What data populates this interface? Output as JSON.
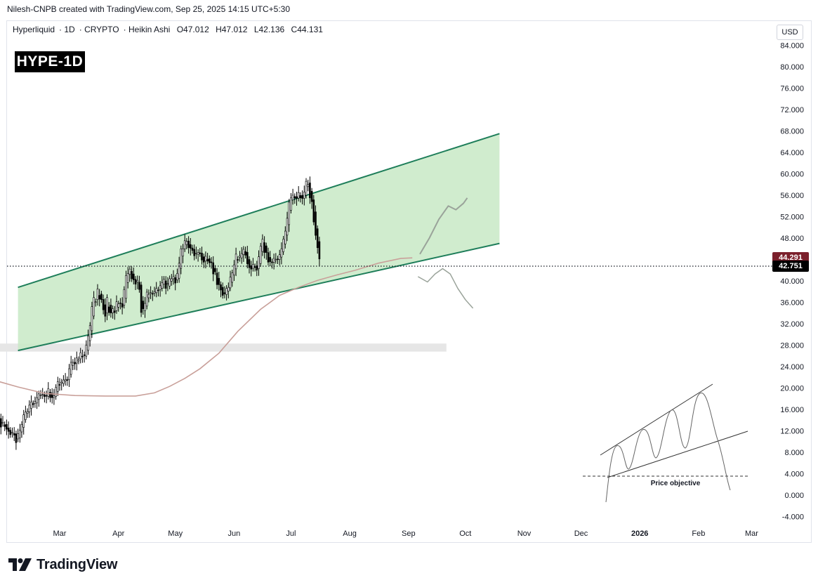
{
  "header": {
    "attribution": "Nilesh-CNPB created with TradingView.com, Sep 25, 2025 14:15 UTC+5:30"
  },
  "symbol": {
    "name": "Hyperliquid",
    "interval": "1D",
    "exchange": "CRYPTO",
    "chart_style": "Heikin Ashi",
    "open": "O47.012",
    "high": "H47.012",
    "low": "L42.136",
    "close": "C44.131",
    "badge": "HYPE-1D"
  },
  "price_scale": {
    "currency": "USD",
    "current_price_label": "42.751",
    "ma_value_label": "44.291"
  },
  "colors": {
    "candles": "#000000",
    "ma_line": "#c9a09a",
    "channel": "#1e7e5a",
    "channel_fill": "#c8e9c5",
    "ma_badge": "#7b1f2b",
    "price_badge": "#000000",
    "support_zone": "#e6e6e6",
    "projection": "#9aa39a"
  },
  "inset": {
    "label": "Price objective"
  },
  "brand": {
    "name": "TradingView"
  },
  "chart_data": {
    "type": "candlestick",
    "title": "Hyperliquid · 1D · CRYPTO · Heikin Ashi",
    "xlabel": "",
    "ylabel": "USD",
    "ylim": [
      -6,
      87
    ],
    "y_ticks": [
      "84.000",
      "80.000",
      "76.000",
      "72.000",
      "68.000",
      "64.000",
      "60.000",
      "56.000",
      "52.000",
      "48.000",
      "44.000",
      "40.000",
      "36.000",
      "32.000",
      "28.000",
      "24.000",
      "20.000",
      "16.000",
      "12.000",
      "8.000",
      "4.000",
      "0.000",
      "-4.000"
    ],
    "x_ticks": [
      "Mar",
      "Apr",
      "May",
      "Jun",
      "Jul",
      "Aug",
      "Sep",
      "Oct",
      "Nov",
      "Dec",
      "2026",
      "Feb",
      "Mar"
    ],
    "x_tick_days": [
      0,
      31,
      61,
      92,
      122,
      153,
      184,
      214,
      245,
      275,
      306,
      337,
      365
    ],
    "candle_start_day": -86,
    "candle_closes": [
      24.9,
      25.0,
      26.5,
      24.7,
      24.1,
      25.8,
      23.7,
      24.7,
      25.6,
      24.0,
      25.2,
      26.9,
      26.3,
      25.0,
      24.6,
      26.0,
      25.8,
      24.5,
      25.5,
      25.5,
      26.6,
      24.8,
      22.3,
      22.1,
      19.9,
      19.3,
      20.6,
      21.0,
      20.6,
      19.7,
      18.9,
      17.1,
      17.0,
      16.6,
      15.5,
      15.0,
      15.5,
      15.1,
      13.6,
      13.9,
      13.3,
      13.7,
      13.5,
      12.9,
      13.5,
      13.5,
      13.8,
      14.1,
      15.1,
      15.4,
      15.0,
      16.2,
      15.3,
      14.5,
      14.1,
      12.7,
      13.6,
      12.8,
      12.3,
      11.9,
      11.3,
      11.7,
      11.2,
      9.8,
      11.5,
      12.1,
      13.2,
      15.0,
      15.5,
      15.6,
      16.8,
      17.4,
      16.9,
      17.5,
      18.2,
      18.9,
      18.7,
      18.8,
      18.4,
      18.5,
      19.9,
      18.2,
      18.2,
      18.6,
      20.1,
      21.2,
      20.6,
      21.1,
      21.5,
      21.6,
      21.5,
      23.6,
      24.8,
      24.8,
      24.5,
      25.6,
      25.3,
      26.6,
      25.8,
      26.1,
      28.0,
      29.7,
      31.7,
      35.2,
      36.9,
      36.1,
      38.5,
      36.6,
      36.5,
      34.6,
      33.4,
      36.9,
      34.1,
      34.0,
      34.8,
      34.1,
      36.1,
      35.7,
      35.8,
      35.1,
      38.4,
      41.0,
      41.4,
      42.2,
      40.4,
      40.2,
      39.4,
      40.1,
      38.4,
      34.1,
      34.8,
      35.8,
      37.9,
      37.5,
      37.8,
      37.6,
      38.0,
      38.6,
      38.2,
      39.1,
      39.7,
      40.3,
      38.6,
      39.5,
      40.4,
      40.4,
      40.8,
      39.6,
      41.4,
      43.3,
      46.0,
      46.0,
      47.5,
      47.4,
      46.2,
      46.1,
      45.7,
      44.7,
      45.2,
      45.3,
      45.1,
      43.9,
      43.5,
      44.6,
      43.7,
      43.4,
      43.4,
      41.3,
      41.7,
      39.3,
      39.3,
      38.3,
      37.3,
      37.6,
      38.6,
      38.8,
      40.7,
      41.5,
      43.0,
      45.0,
      43.9,
      44.7,
      45.1,
      45.9,
      44.8,
      43.2,
      42.5,
      42.2,
      43.1,
      42.6,
      42.0,
      44.5,
      46.5,
      47.8,
      45.3,
      45.3,
      43.5,
      43.6,
      43.4,
      44.2,
      44.0,
      44.0,
      44.9,
      46.0,
      47.8,
      49.3,
      51.7,
      54.7,
      55.5,
      56.0,
      55.5,
      55.4,
      56.5,
      55.5,
      55.4,
      56.6,
      58.6,
      58.0,
      55.5,
      54.8,
      51.0,
      48.5,
      46.2,
      44.1
    ],
    "ma_points": [
      [
        -64,
        22.3
      ],
      [
        -50,
        22.6
      ],
      [
        -36,
        21.6
      ],
      [
        -22,
        20.2
      ],
      [
        -8,
        19.0
      ],
      [
        8,
        18.6
      ],
      [
        24,
        18.5
      ],
      [
        40,
        18.5
      ],
      [
        50,
        19.1
      ],
      [
        58,
        20.3
      ],
      [
        66,
        21.8
      ],
      [
        74,
        23.6
      ],
      [
        84,
        26.5
      ],
      [
        94,
        30.6
      ],
      [
        106,
        34.7
      ],
      [
        116,
        37.3
      ],
      [
        126,
        38.8
      ],
      [
        136,
        40.1
      ],
      [
        146,
        41.1
      ],
      [
        156,
        42.0
      ],
      [
        168,
        43.3
      ],
      [
        180,
        44.2
      ],
      [
        186,
        44.3
      ]
    ],
    "channel_upper": [
      [
        -22,
        38.8
      ],
      [
        232,
        67.5
      ]
    ],
    "channel_lower": [
      [
        -22,
        27.0
      ],
      [
        232,
        47.0
      ]
    ],
    "support_zone": [
      -86,
      204,
      26.8,
      28.3
    ],
    "projection_bull": [
      [
        190,
        45.0
      ],
      [
        195,
        48.0
      ],
      [
        200,
        51.5
      ],
      [
        205,
        54.0
      ],
      [
        209,
        53.3
      ],
      [
        213,
        54.5
      ],
      [
        215,
        55.5
      ]
    ],
    "projection_bear": [
      [
        189,
        40.8
      ],
      [
        194,
        39.8
      ],
      [
        198,
        41.3
      ],
      [
        202,
        42.3
      ],
      [
        206,
        41.3
      ],
      [
        210,
        38.6
      ],
      [
        214,
        36.5
      ],
      [
        218,
        34.9
      ]
    ],
    "last_price": 42.751,
    "ma_value": 44.291
  }
}
